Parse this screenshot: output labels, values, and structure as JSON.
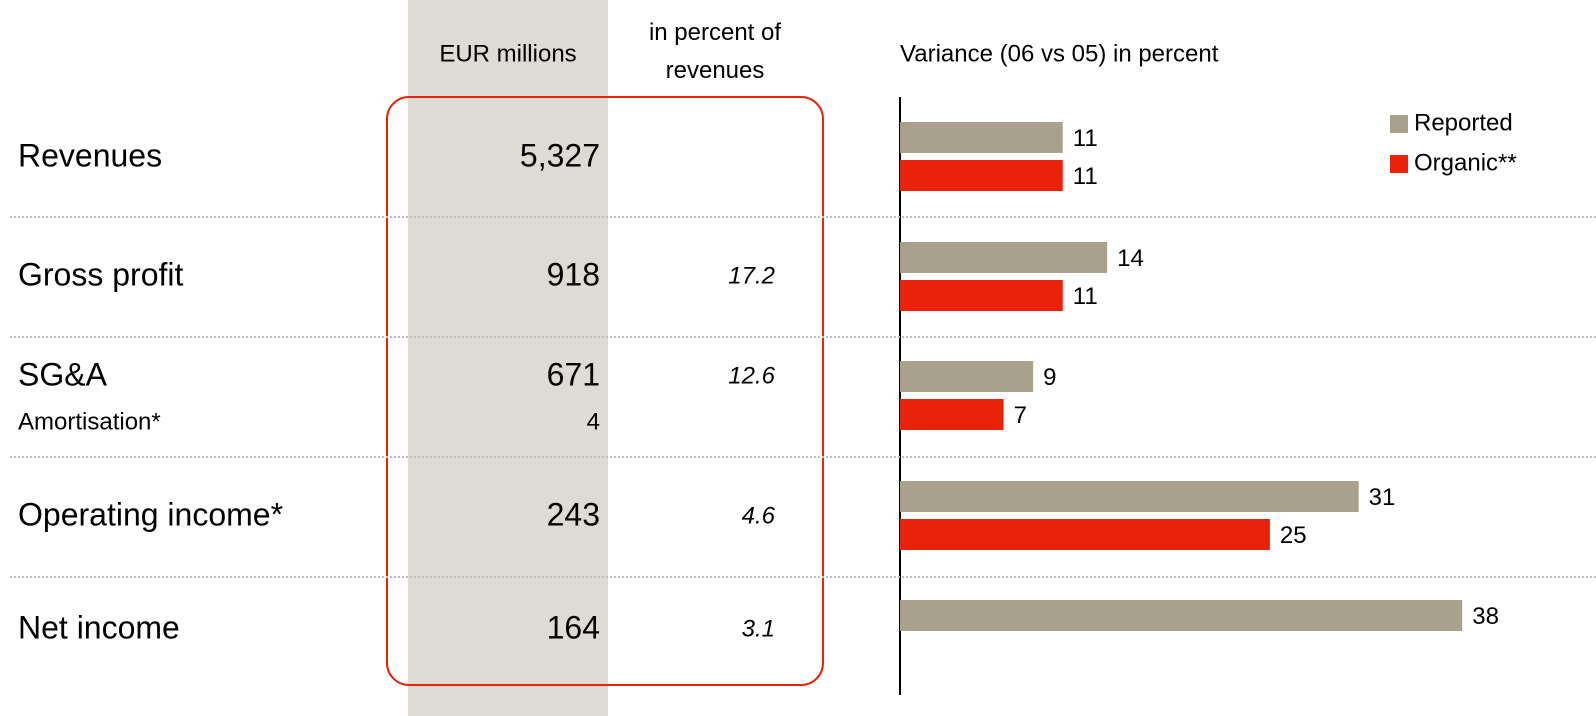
{
  "table": {
    "columns": [
      "EUR millions",
      "in percent of revenues"
    ],
    "rows": [
      {
        "label": "Revenues",
        "value": "5,327"
      },
      {
        "label": "Gross profit",
        "value": "918",
        "percent": "17.2"
      },
      {
        "label": "SG&A",
        "value": "671",
        "percent": "12.6"
      },
      {
        "label": "Amortisation*",
        "value": "4",
        "sub": true
      },
      {
        "label": "Operating income*",
        "value": "243",
        "percent": "4.6"
      },
      {
        "label": "Net income",
        "value": "164",
        "percent": "3.1"
      }
    ]
  },
  "chart_data": {
    "type": "bar",
    "orientation": "horizontal",
    "title": "Variance (06 vs 05) in percent",
    "xlim": [
      0,
      44
    ],
    "legend": "upper right",
    "series": [
      {
        "name": "Reported",
        "color": "#a9a18c",
        "values": [
          11,
          14,
          9,
          31,
          38
        ]
      },
      {
        "name": "Organic**",
        "color": "#e8230a",
        "values": [
          11,
          11,
          7,
          25,
          null
        ]
      }
    ]
  }
}
